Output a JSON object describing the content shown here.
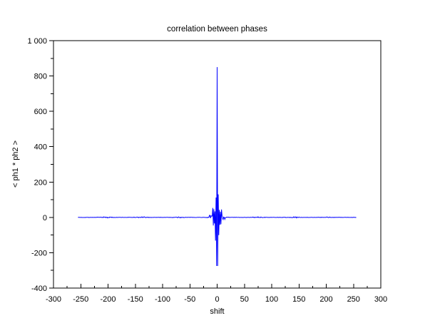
{
  "chart_data": {
    "type": "line",
    "title": "correlation between phases",
    "xlabel": "shift",
    "ylabel": "< ph1 * ph2 >",
    "xlim": [
      -300,
      300
    ],
    "ylim": [
      -400,
      1000
    ],
    "x_major_ticks": [
      -300,
      -250,
      -200,
      -150,
      -100,
      -50,
      0,
      50,
      100,
      150,
      200,
      250,
      300
    ],
    "x_tick_labels": [
      "-300",
      "-250",
      "-200",
      "-150",
      "-100",
      "-50",
      "0",
      "50",
      "100",
      "150",
      "200",
      "250",
      "300"
    ],
    "x_minor_step": 25,
    "y_major_ticks": [
      1000,
      800,
      600,
      400,
      200,
      0,
      -200,
      -400
    ],
    "y_tick_labels": [
      "1 000",
      "800",
      "600",
      "400",
      "200",
      "0",
      "-200",
      "-400"
    ],
    "y_minor_step": 100,
    "grid": false,
    "frame": "box",
    "axis_color": "#000000",
    "background_color": "#ffffff",
    "legend": null,
    "series": [
      {
        "name": "correlation",
        "color": "#0000ff",
        "x_start": -255,
        "x_end": 255,
        "x_step": 1,
        "baseline": 0,
        "peak": {
          "x": 0,
          "y": 850
        },
        "trough": {
          "x": 1,
          "y": -275
        },
        "inner_envelope": {
          "radius": 3,
          "amplitude": 140
        },
        "core_envelope": {
          "radius": 8,
          "amplitude": 55
        },
        "shoulder_envelope": {
          "radius": 14,
          "amplitude": 12
        },
        "tail_noise_amplitude": 3.5,
        "noise_cluster_period": 66,
        "seed": 7
      }
    ]
  }
}
